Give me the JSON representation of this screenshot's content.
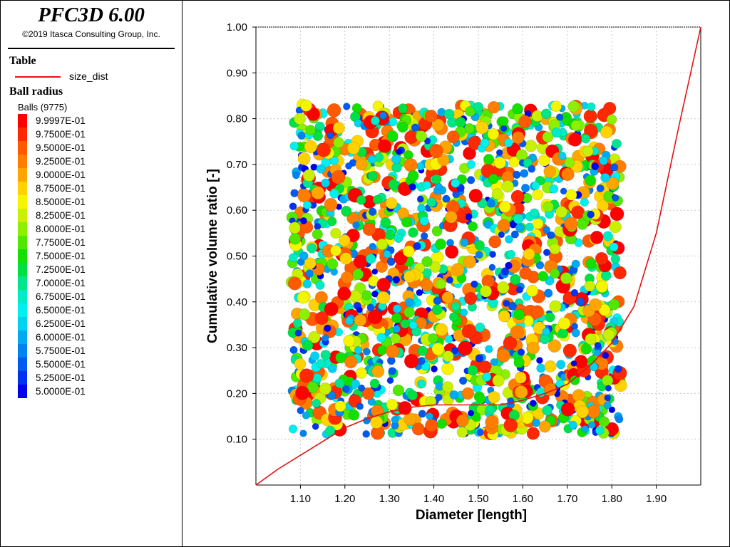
{
  "app": {
    "title": "PFC3D 6.00",
    "copyright": "©2019 Itasca Consulting Group, Inc."
  },
  "legend": {
    "table_heading": "Table",
    "table_item": "size_dist",
    "table_color": "#e81010",
    "ball_heading": "Ball radius",
    "balls_count": "Balls (9775)",
    "scale": [
      {
        "label": "9.9997E-01",
        "color": "#ff0000"
      },
      {
        "label": "9.7500E-01",
        "color": "#ff2800"
      },
      {
        "label": "9.5000E-01",
        "color": "#ff5a00"
      },
      {
        "label": "9.2500E-01",
        "color": "#ff7e00"
      },
      {
        "label": "9.0000E-01",
        "color": "#ffa500"
      },
      {
        "label": "8.7500E-01",
        "color": "#ffd200"
      },
      {
        "label": "8.5000E-01",
        "color": "#f5f500"
      },
      {
        "label": "8.2500E-01",
        "color": "#c8f000"
      },
      {
        "label": "8.0000E-01",
        "color": "#8cf000"
      },
      {
        "label": "7.7500E-01",
        "color": "#50e800"
      },
      {
        "label": "7.5000E-01",
        "color": "#14e000"
      },
      {
        "label": "7.2500E-01",
        "color": "#00e040"
      },
      {
        "label": "7.0000E-01",
        "color": "#00e68c"
      },
      {
        "label": "6.7500E-01",
        "color": "#00ebc8"
      },
      {
        "label": "6.5000E-01",
        "color": "#00f0f0"
      },
      {
        "label": "6.2500E-01",
        "color": "#00d2f0"
      },
      {
        "label": "6.0000E-01",
        "color": "#00aaf0"
      },
      {
        "label": "5.7500E-01",
        "color": "#0082f0"
      },
      {
        "label": "5.5000E-01",
        "color": "#005af0"
      },
      {
        "label": "5.2500E-01",
        "color": "#0032f0"
      },
      {
        "label": "5.0000E-01",
        "color": "#0000f0"
      }
    ]
  },
  "chart_data": {
    "type": "line",
    "xlabel": "Diameter [length]",
    "ylabel": "Cumulative volume ratio [-]",
    "xlim": [
      1.0,
      2.0
    ],
    "ylim": [
      0.0,
      1.0
    ],
    "x_ticks": [
      "1.10",
      "1.20",
      "1.30",
      "1.40",
      "1.50",
      "1.60",
      "1.70",
      "1.80",
      "1.90"
    ],
    "y_ticks": [
      "0.10",
      "0.20",
      "0.30",
      "0.40",
      "0.50",
      "0.60",
      "0.70",
      "0.80",
      "0.90",
      "1.00"
    ],
    "grid": true,
    "series": [
      {
        "name": "size_dist",
        "color": "#e81010",
        "x": [
          1.0,
          1.05,
          1.1,
          1.15,
          1.2,
          1.25,
          1.3,
          1.35,
          1.4,
          1.45,
          1.5,
          1.55,
          1.6,
          1.65,
          1.7,
          1.75,
          1.8,
          1.85,
          1.9,
          1.95,
          2.0
        ],
        "y": [
          0.0,
          0.035,
          0.065,
          0.095,
          0.125,
          0.145,
          0.16,
          0.17,
          0.175,
          0.175,
          0.175,
          0.175,
          0.185,
          0.2,
          0.22,
          0.26,
          0.31,
          0.39,
          0.55,
          0.78,
          1.0
        ]
      }
    ],
    "ball_cloud": {
      "count_label": "Balls (9775)",
      "x_range": [
        1.08,
        1.82
      ],
      "y_range": [
        0.11,
        0.83
      ]
    }
  }
}
